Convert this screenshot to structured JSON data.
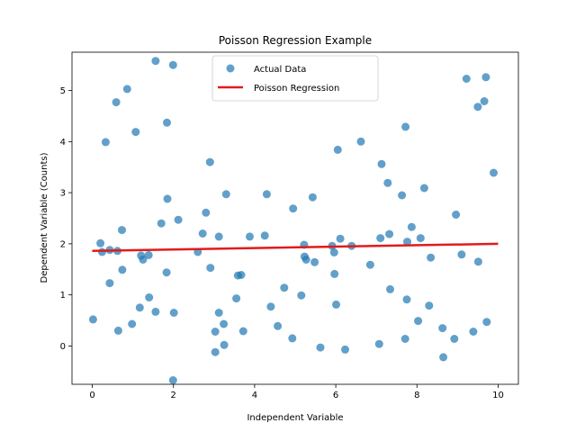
{
  "chart_data": {
    "type": "scatter",
    "title": "Poisson Regression Example",
    "xlabel": "Independent Variable",
    "ylabel": "Dependent Variable (Counts)",
    "xlim": [
      -0.5,
      10.5
    ],
    "ylim": [
      -0.75,
      5.75
    ],
    "xticks": [
      0,
      2,
      4,
      6,
      8,
      10
    ],
    "yticks": [
      0,
      1,
      2,
      3,
      4,
      5
    ],
    "grid": false,
    "legend_position": "top-center",
    "colors": {
      "points": "#1f77b4",
      "line": "#e31a1c"
    },
    "series": [
      {
        "name": "Actual Data",
        "kind": "scatter",
        "points": [
          [
            0.02,
            0.52
          ],
          [
            0.2,
            2.01
          ],
          [
            0.24,
            1.84
          ],
          [
            0.33,
            3.99
          ],
          [
            0.43,
            1.88
          ],
          [
            0.43,
            1.23
          ],
          [
            0.59,
            4.77
          ],
          [
            0.62,
            1.86
          ],
          [
            0.64,
            0.3
          ],
          [
            0.73,
            2.27
          ],
          [
            0.74,
            1.49
          ],
          [
            0.86,
            5.03
          ],
          [
            0.98,
            0.43
          ],
          [
            1.07,
            4.19
          ],
          [
            1.17,
            0.75
          ],
          [
            1.2,
            1.77
          ],
          [
            1.25,
            1.69
          ],
          [
            1.39,
            1.78
          ],
          [
            1.4,
            0.95
          ],
          [
            1.56,
            5.58
          ],
          [
            1.56,
            0.67
          ],
          [
            1.7,
            2.4
          ],
          [
            1.83,
            1.44
          ],
          [
            1.84,
            4.37
          ],
          [
            1.85,
            2.88
          ],
          [
            1.99,
            5.5
          ],
          [
            1.99,
            -0.67
          ],
          [
            2.01,
            0.65
          ],
          [
            2.12,
            2.47
          ],
          [
            2.6,
            1.84
          ],
          [
            2.72,
            2.2
          ],
          [
            2.8,
            2.61
          ],
          [
            2.9,
            3.6
          ],
          [
            2.91,
            1.53
          ],
          [
            3.03,
            -0.12
          ],
          [
            3.03,
            0.28
          ],
          [
            3.12,
            2.14
          ],
          [
            3.12,
            0.65
          ],
          [
            3.24,
            0.43
          ],
          [
            3.25,
            0.02
          ],
          [
            3.3,
            2.97
          ],
          [
            3.55,
            0.93
          ],
          [
            3.59,
            1.38
          ],
          [
            3.67,
            1.39
          ],
          [
            3.72,
            0.29
          ],
          [
            3.88,
            2.14
          ],
          [
            4.25,
            2.16
          ],
          [
            4.3,
            2.97
          ],
          [
            4.4,
            0.77
          ],
          [
            4.57,
            0.39
          ],
          [
            4.73,
            1.14
          ],
          [
            4.93,
            0.15
          ],
          [
            4.95,
            2.69
          ],
          [
            5.15,
            0.99
          ],
          [
            5.22,
            1.98
          ],
          [
            5.23,
            1.75
          ],
          [
            5.27,
            1.69
          ],
          [
            5.43,
            2.91
          ],
          [
            5.48,
            1.64
          ],
          [
            5.62,
            -0.03
          ],
          [
            5.91,
            1.96
          ],
          [
            5.96,
            1.83
          ],
          [
            5.97,
            1.41
          ],
          [
            6.01,
            0.81
          ],
          [
            6.05,
            3.84
          ],
          [
            6.11,
            2.1
          ],
          [
            6.23,
            -0.07
          ],
          [
            6.39,
            1.96
          ],
          [
            6.62,
            4.0
          ],
          [
            6.85,
            1.59
          ],
          [
            7.07,
            0.04
          ],
          [
            7.1,
            2.11
          ],
          [
            7.13,
            3.56
          ],
          [
            7.28,
            3.19
          ],
          [
            7.32,
            2.19
          ],
          [
            7.34,
            1.11
          ],
          [
            7.63,
            2.95
          ],
          [
            7.71,
            0.14
          ],
          [
            7.72,
            4.29
          ],
          [
            7.75,
            0.91
          ],
          [
            7.76,
            2.04
          ],
          [
            7.87,
            2.33
          ],
          [
            8.03,
            0.49
          ],
          [
            8.09,
            2.11
          ],
          [
            8.18,
            3.09
          ],
          [
            8.3,
            0.79
          ],
          [
            8.34,
            1.73
          ],
          [
            8.63,
            0.35
          ],
          [
            8.65,
            -0.22
          ],
          [
            8.92,
            0.14
          ],
          [
            8.96,
            2.57
          ],
          [
            9.1,
            1.79
          ],
          [
            9.22,
            5.23
          ],
          [
            9.39,
            0.28
          ],
          [
            9.5,
            4.68
          ],
          [
            9.51,
            1.65
          ],
          [
            9.66,
            4.79
          ],
          [
            9.7,
            5.26
          ],
          [
            9.72,
            0.47
          ],
          [
            9.89,
            3.39
          ]
        ]
      },
      {
        "name": "Poisson Regression",
        "kind": "line",
        "points": [
          [
            0,
            1.86
          ],
          [
            10,
            2.0
          ]
        ]
      }
    ]
  }
}
